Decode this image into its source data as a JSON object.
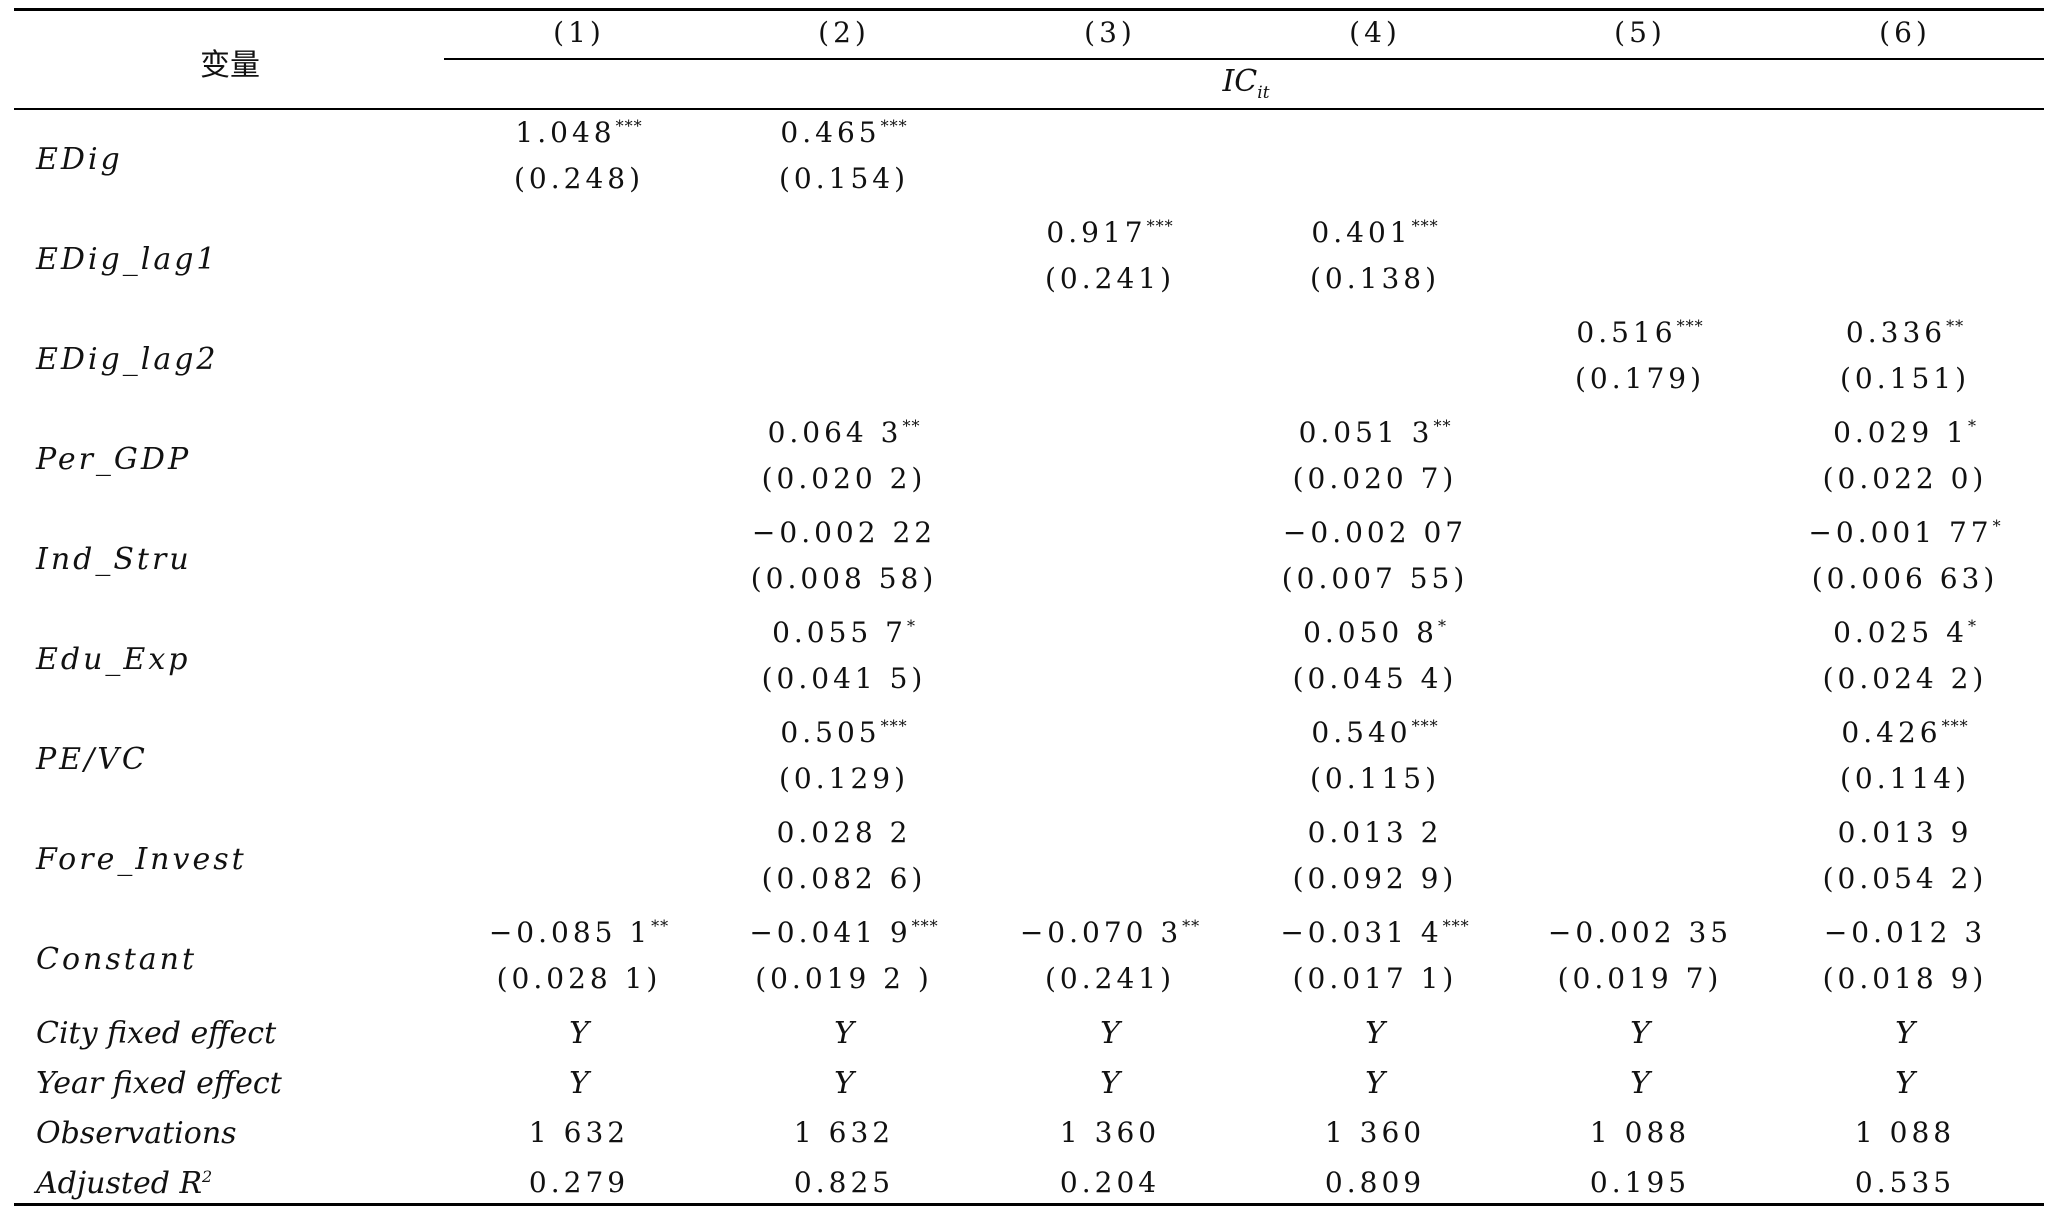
{
  "header": {
    "variable_label": "变量",
    "columns": [
      "(1)",
      "(2)",
      "(3)",
      "(4)",
      "(5)",
      "(6)"
    ],
    "dependent_var": "IC",
    "dependent_var_sub": "it"
  },
  "rows": [
    {
      "name": "EDig",
      "coef": [
        {
          "v": "1.048",
          "s": "***"
        },
        {
          "v": "0.465",
          "s": "***"
        },
        {
          "v": "",
          "s": ""
        },
        {
          "v": "",
          "s": ""
        },
        {
          "v": "",
          "s": ""
        },
        {
          "v": "",
          "s": ""
        }
      ],
      "se": [
        "(0.248)",
        "(0.154)",
        "",
        "",
        "",
        ""
      ]
    },
    {
      "name": "EDig_lag1",
      "coef": [
        {
          "v": "",
          "s": ""
        },
        {
          "v": "",
          "s": ""
        },
        {
          "v": "0.917",
          "s": "***"
        },
        {
          "v": "0.401",
          "s": "***"
        },
        {
          "v": "",
          "s": ""
        },
        {
          "v": "",
          "s": ""
        }
      ],
      "se": [
        "",
        "",
        "(0.241)",
        "(0.138)",
        "",
        ""
      ]
    },
    {
      "name": "EDig_lag2",
      "coef": [
        {
          "v": "",
          "s": ""
        },
        {
          "v": "",
          "s": ""
        },
        {
          "v": "",
          "s": ""
        },
        {
          "v": "",
          "s": ""
        },
        {
          "v": "0.516",
          "s": "***"
        },
        {
          "v": "0.336",
          "s": "**"
        }
      ],
      "se": [
        "",
        "",
        "",
        "",
        "(0.179)",
        "(0.151)"
      ]
    },
    {
      "name": "Per_GDP",
      "coef": [
        {
          "v": "",
          "s": ""
        },
        {
          "v": "0.064 3",
          "s": "**"
        },
        {
          "v": "",
          "s": ""
        },
        {
          "v": "0.051 3",
          "s": "**"
        },
        {
          "v": "",
          "s": ""
        },
        {
          "v": "0.029 1",
          "s": "*"
        }
      ],
      "se": [
        "",
        "(0.020 2)",
        "",
        "(0.020 7)",
        "",
        "(0.022 0)"
      ]
    },
    {
      "name": "Ind_Stru",
      "coef": [
        {
          "v": "",
          "s": ""
        },
        {
          "v": "−0.002 22",
          "s": ""
        },
        {
          "v": "",
          "s": ""
        },
        {
          "v": "−0.002 07",
          "s": ""
        },
        {
          "v": "",
          "s": ""
        },
        {
          "v": "−0.001 77",
          "s": "*"
        }
      ],
      "se": [
        "",
        "(0.008 58)",
        "",
        "(0.007 55)",
        "",
        "(0.006 63)"
      ]
    },
    {
      "name": "Edu_Exp",
      "coef": [
        {
          "v": "",
          "s": ""
        },
        {
          "v": "0.055 7",
          "s": "*"
        },
        {
          "v": "",
          "s": ""
        },
        {
          "v": "0.050 8",
          "s": "*"
        },
        {
          "v": "",
          "s": ""
        },
        {
          "v": "0.025 4",
          "s": "*"
        }
      ],
      "se": [
        "",
        "(0.041 5)",
        "",
        "(0.045 4)",
        "",
        "(0.024 2)"
      ]
    },
    {
      "name": "PE/VC",
      "coef": [
        {
          "v": "",
          "s": ""
        },
        {
          "v": "0.505",
          "s": "***"
        },
        {
          "v": "",
          "s": ""
        },
        {
          "v": "0.540",
          "s": "***"
        },
        {
          "v": "",
          "s": ""
        },
        {
          "v": "0.426",
          "s": "***"
        }
      ],
      "se": [
        "",
        "(0.129)",
        "",
        "(0.115)",
        "",
        "(0.114)"
      ]
    },
    {
      "name": "Fore_Invest",
      "coef": [
        {
          "v": "",
          "s": ""
        },
        {
          "v": "0.028 2",
          "s": ""
        },
        {
          "v": "",
          "s": ""
        },
        {
          "v": "0.013 2",
          "s": ""
        },
        {
          "v": "",
          "s": ""
        },
        {
          "v": "0.013 9",
          "s": ""
        }
      ],
      "se": [
        "",
        "(0.082 6)",
        "",
        "(0.092 9)",
        "",
        "(0.054 2)"
      ]
    },
    {
      "name": "Constant",
      "coef": [
        {
          "v": "−0.085 1",
          "s": "**"
        },
        {
          "v": "−0.041 9",
          "s": "***"
        },
        {
          "v": "−0.070 3",
          "s": "**"
        },
        {
          "v": "−0.031 4",
          "s": "***"
        },
        {
          "v": "−0.002 35",
          "s": ""
        },
        {
          "v": "−0.012 3",
          "s": ""
        }
      ],
      "se": [
        "(0.028 1)",
        "(0.019 2 )",
        "(0.241)",
        "(0.017 1)",
        "(0.019 7)",
        "(0.018 9)"
      ]
    }
  ],
  "footer_rows": [
    {
      "name": "City fixed effect",
      "values": [
        "Y",
        "Y",
        "Y",
        "Y",
        "Y",
        "Y"
      ]
    },
    {
      "name": "Year fixed effect",
      "values": [
        "Y",
        "Y",
        "Y",
        "Y",
        "Y",
        "Y"
      ]
    },
    {
      "name": "Observations",
      "values": [
        "1 632",
        "1 632",
        "1 360",
        "1 360",
        "1 088",
        "1 088"
      ]
    },
    {
      "name": "Adjusted R",
      "name_sup": "2",
      "values": [
        "0.279",
        "0.825",
        "0.204",
        "0.809",
        "0.195",
        "0.535"
      ]
    }
  ]
}
